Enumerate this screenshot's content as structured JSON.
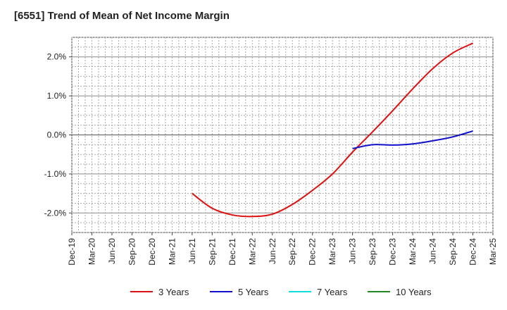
{
  "chart_data": {
    "type": "line",
    "title": "[6551]  Trend of Mean of Net Income Margin",
    "xlabel": "",
    "ylabel": "",
    "x_tick_labels": [
      "Dec-19",
      "Mar-20",
      "Jun-20",
      "Sep-20",
      "Dec-20",
      "Mar-21",
      "Jun-21",
      "Sep-21",
      "Dec-21",
      "Mar-22",
      "Jun-22",
      "Sep-22",
      "Dec-22",
      "Mar-23",
      "Jun-23",
      "Sep-23",
      "Dec-23",
      "Mar-24",
      "Jun-24",
      "Sep-24",
      "Dec-24",
      "Mar-25"
    ],
    "y_ticks": [
      -2.0,
      -1.0,
      0.0,
      1.0,
      2.0
    ],
    "y_tick_labels": [
      "-2.0%",
      "-1.0%",
      "0.0%",
      "1.0%",
      "2.0%"
    ],
    "ylim": [
      -2.5,
      2.5
    ],
    "grid": true,
    "legend_position": "bottom",
    "series": [
      {
        "name": "3 Years",
        "color": "#dd1111",
        "points": [
          [
            "Jun-21",
            -1.5
          ],
          [
            "Sep-21",
            -1.88
          ],
          [
            "Dec-21",
            -2.05
          ],
          [
            "Mar-22",
            -2.09
          ],
          [
            "Jun-22",
            -2.03
          ],
          [
            "Sep-22",
            -1.78
          ],
          [
            "Dec-22",
            -1.42
          ],
          [
            "Mar-23",
            -1.0
          ],
          [
            "Jun-23",
            -0.44
          ],
          [
            "Sep-23",
            0.08
          ],
          [
            "Dec-23",
            0.62
          ],
          [
            "Mar-24",
            1.18
          ],
          [
            "Jun-24",
            1.7
          ],
          [
            "Sep-24",
            2.1
          ],
          [
            "Dec-24",
            2.35
          ]
        ]
      },
      {
        "name": "5 Years",
        "color": "#1111cc",
        "points": [
          [
            "Jun-23",
            -0.35
          ],
          [
            "Sep-23",
            -0.25
          ],
          [
            "Dec-23",
            -0.26
          ],
          [
            "Mar-24",
            -0.23
          ],
          [
            "Jun-24",
            -0.15
          ],
          [
            "Sep-24",
            -0.05
          ],
          [
            "Dec-24",
            0.1
          ]
        ]
      },
      {
        "name": "7 Years",
        "color": "#11dddd",
        "points": []
      },
      {
        "name": "10 Years",
        "color": "#228822",
        "points": []
      }
    ]
  }
}
